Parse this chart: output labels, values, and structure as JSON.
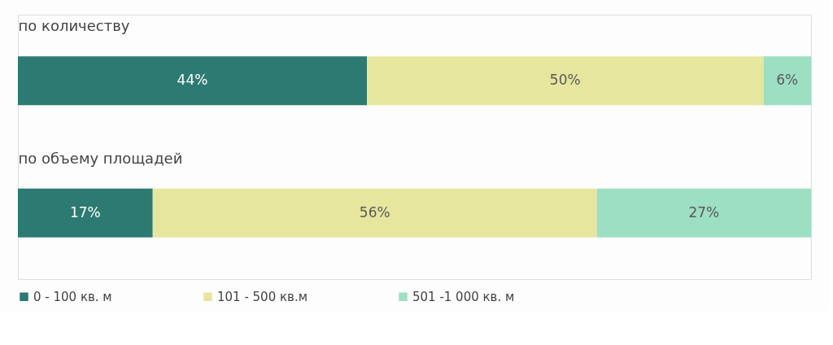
{
  "chart_data": {
    "type": "bar",
    "orientation": "horizontal",
    "stacked": true,
    "categories": [
      "по количеству",
      "по объему площадей"
    ],
    "legend": "bottom",
    "series": [
      {
        "name": "0 - 100 кв. м",
        "color": "#2c7a72",
        "values": [
          44,
          17
        ],
        "value_labels": [
          "44%",
          "17%"
        ]
      },
      {
        "name": "101 - 500 кв.м",
        "color": "#e6e69e",
        "values": [
          50,
          56
        ],
        "value_labels": [
          "50%",
          "56%"
        ]
      },
      {
        "name": "501 -1 000 кв. м",
        "color": "#9ddfc3",
        "values": [
          6,
          27
        ],
        "value_labels": [
          "6%",
          "27%"
        ]
      }
    ]
  }
}
